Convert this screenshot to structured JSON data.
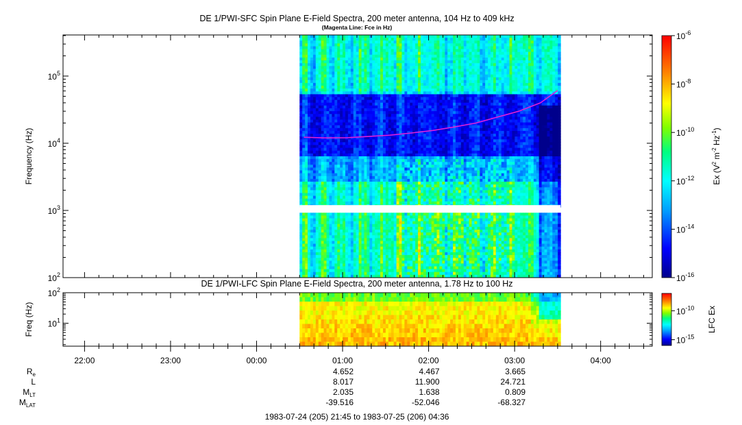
{
  "chart_data": [
    {
      "type": "heatmap",
      "title": "DE 1/PWI-SFC  Spin Plane E-Field Spectra, 200 meter antenna, 104 Hz to 409 kHz",
      "subtitle": "(Magenta Line: Fce in Hz)",
      "ylabel": "Frequency (Hz)",
      "yscale": "log",
      "ylim": [
        100,
        409000
      ],
      "y_ticks": [
        {
          "value": 100,
          "base": "10",
          "exp": "2"
        },
        {
          "value": 1000,
          "base": "10",
          "exp": "3"
        },
        {
          "value": 10000,
          "base": "10",
          "exp": "4"
        },
        {
          "value": 100000,
          "base": "10",
          "exp": "5"
        }
      ],
      "data_coverage": {
        "start": "00:30",
        "end": "03:32"
      },
      "gap_frequency_hz": [
        980,
        1200
      ],
      "colorbar": {
        "label": {
          "prefix": "Ex (V",
          "sup1": "2",
          "mid": " m",
          "sup2": "-2",
          "mid2": " Hz",
          "sup3": "-1",
          "suffix": ")"
        },
        "scale": "log",
        "range": [
          1e-16,
          1e-06
        ],
        "ticks": [
          {
            "value": 1e-06,
            "base": "10",
            "exp": "-6"
          },
          {
            "value": 1e-08,
            "base": "10",
            "exp": "-8"
          },
          {
            "value": 1e-10,
            "base": "10",
            "exp": "-10"
          },
          {
            "value": 1e-12,
            "base": "10",
            "exp": "-12"
          },
          {
            "value": 1e-14,
            "base": "10",
            "exp": "-14"
          },
          {
            "value": 1e-16,
            "base": "10",
            "exp": "-16"
          }
        ]
      },
      "series": [
        {
          "type": "line",
          "color": "#e020d8",
          "points": [
            {
              "t": "00:33",
              "f": 12300
            },
            {
              "t": "00:48",
              "f": 12000
            },
            {
              "t": "01:03",
              "f": 12100
            },
            {
              "t": "01:18",
              "f": 12600
            },
            {
              "t": "01:33",
              "f": 13200
            },
            {
              "t": "01:48",
              "f": 14200
            },
            {
              "t": "02:03",
              "f": 15500
            },
            {
              "t": "02:18",
              "f": 17500
            },
            {
              "t": "02:33",
              "f": 20000
            },
            {
              "t": "02:48",
              "f": 24500
            },
            {
              "t": "03:03",
              "f": 30000
            },
            {
              "t": "03:18",
              "f": 40000
            },
            {
              "t": "03:30",
              "f": 61000
            }
          ]
        }
      ]
    },
    {
      "type": "heatmap",
      "title": "DE 1/PWI-LFC  Spin Plane E-Field Spectra, 200 meter antenna, 1.78 Hz to 100 Hz",
      "ylabel": "Freq (Hz)",
      "yscale": "log",
      "ylim": [
        1.78,
        100
      ],
      "y_ticks": [
        {
          "value": 10,
          "base": "10",
          "exp": "1"
        },
        {
          "value": 100,
          "base": "10",
          "exp": "2"
        }
      ],
      "data_coverage": {
        "start": "00:30",
        "end": "03:32"
      },
      "colorbar": {
        "label": "LFC Ex",
        "scale": "log",
        "range": [
          1e-16,
          1e-07
        ],
        "ticks": [
          {
            "value": 1e-10,
            "base": "10",
            "exp": "-10"
          },
          {
            "value": 1e-15,
            "base": "10",
            "exp": "-15"
          }
        ]
      }
    }
  ],
  "time_axis": {
    "ticks": [
      "22:00",
      "23:00",
      "00:00",
      "01:00",
      "02:00",
      "03:00",
      "04:00"
    ],
    "range": [
      "21:45",
      "04:36"
    ]
  },
  "ephemeris": {
    "labels": [
      {
        "main": "R",
        "sub": "e"
      },
      {
        "main": "L",
        "sub": ""
      },
      {
        "main": "M",
        "sub": "LT"
      },
      {
        "main": "M",
        "sub": "LAT"
      }
    ],
    "columns": [
      {
        "time": "01:00",
        "values": [
          "4.652",
          "8.017",
          "2.035",
          "-39.516"
        ]
      },
      {
        "time": "02:00",
        "values": [
          "4.467",
          "11.900",
          "1.638",
          "-52.046"
        ]
      },
      {
        "time": "03:00",
        "values": [
          "3.665",
          "24.721",
          "0.809",
          "-68.327"
        ]
      }
    ]
  },
  "time_range_label": "1983-07-24 (205) 21:45 to 1983-07-25 (206) 04:36"
}
